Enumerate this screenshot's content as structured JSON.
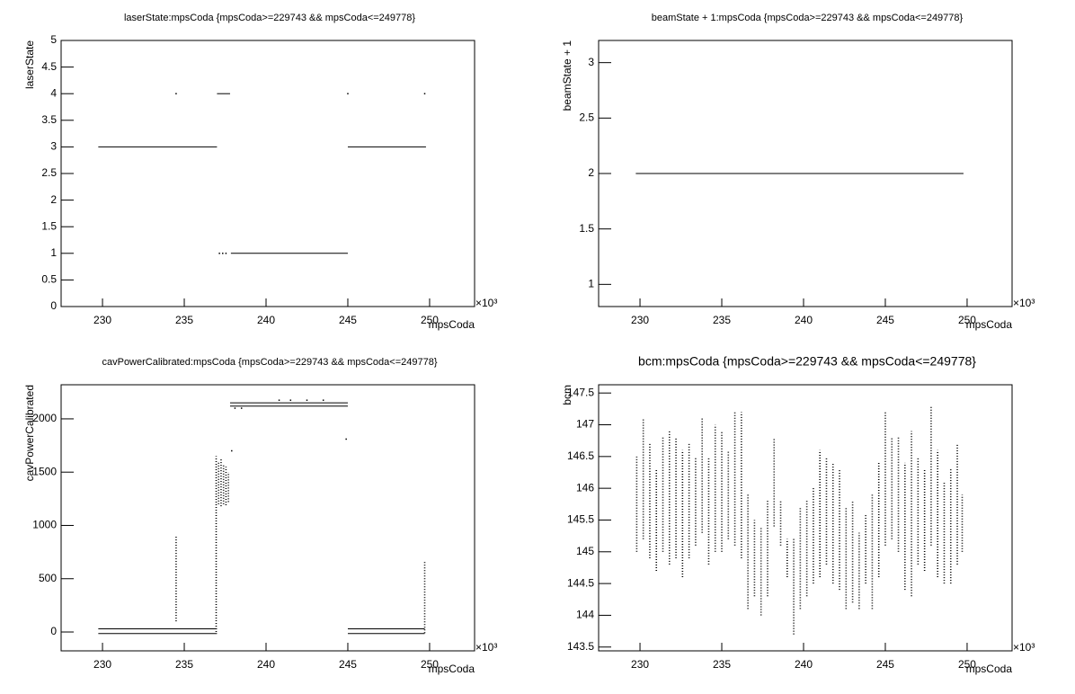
{
  "chart_data": [
    {
      "type": "scatter",
      "title": "laserState:mpsCoda {mpsCoda>=229743 && mpsCoda<=249778}",
      "x_label": "mpsCoda",
      "y_label": "laserState",
      "x_multiplier": "×10³",
      "xlim": [
        227.47,
        252.75
      ],
      "xticks": [
        230,
        235,
        240,
        245,
        250
      ],
      "ylim": [
        0,
        5
      ],
      "yticks": [
        0,
        0.5,
        1,
        1.5,
        2,
        2.5,
        3,
        3.5,
        4,
        4.5,
        5
      ],
      "color": "#000000",
      "series": [
        {
          "style": "line",
          "x": [
            229.743,
            237.0
          ],
          "values": [
            3,
            3
          ]
        },
        {
          "style": "line",
          "x": [
            237.0,
            237.8
          ],
          "values": [
            4,
            4
          ]
        },
        {
          "style": "line",
          "x": [
            237.85,
            245.0
          ],
          "values": [
            1,
            1
          ]
        },
        {
          "style": "line",
          "x": [
            245.0,
            249.778
          ],
          "values": [
            3,
            3
          ]
        },
        {
          "style": "dots",
          "x": [
            234.5,
            245.0,
            249.7,
            237.15,
            237.35,
            237.55
          ],
          "values": [
            4,
            4,
            4,
            1,
            1,
            1
          ]
        }
      ]
    },
    {
      "type": "scatter",
      "title": "beamState + 1:mpsCoda {mpsCoda>=229743 && mpsCoda<=249778}",
      "x_label": "mpsCoda",
      "y_label": "beamState + 1",
      "x_multiplier": "×10³",
      "xlim": [
        227.47,
        252.75
      ],
      "xticks": [
        230,
        235,
        240,
        245,
        250
      ],
      "ylim": [
        0.8,
        3.2
      ],
      "yticks": [
        1,
        1.5,
        2,
        2.5,
        3
      ],
      "color": "#000000",
      "series": [
        {
          "style": "line",
          "x": [
            229.743,
            249.778
          ],
          "values": [
            2,
            2
          ]
        }
      ]
    },
    {
      "type": "scatter",
      "title": "cavPowerCalibrated:mpsCoda {mpsCoda>=229743 && mpsCoda<=249778}",
      "x_label": "mpsCoda",
      "y_label": "cavPowerCalibrated",
      "x_multiplier": "×10³",
      "xlim": [
        227.47,
        252.75
      ],
      "xticks": [
        230,
        235,
        240,
        245,
        250
      ],
      "ylim": [
        -177,
        2320
      ],
      "yticks": [
        0,
        500,
        1000,
        1500,
        2000
      ],
      "color": "#000000",
      "series": [
        {
          "style": "line",
          "x": [
            229.743,
            237.0
          ],
          "values": [
            30,
            30
          ]
        },
        {
          "style": "line",
          "x": [
            229.743,
            237.0
          ],
          "values": [
            -15,
            -15
          ]
        },
        {
          "style": "line",
          "x": [
            237.8,
            245.0
          ],
          "values": [
            2150,
            2150
          ]
        },
        {
          "style": "line",
          "x": [
            237.8,
            245.0
          ],
          "values": [
            2120,
            2120
          ]
        },
        {
          "style": "line",
          "x": [
            245.0,
            249.7
          ],
          "values": [
            30,
            30
          ]
        },
        {
          "style": "line",
          "x": [
            245.0,
            249.7
          ],
          "values": [
            -15,
            -15
          ]
        },
        {
          "style": "range",
          "x": [
            234.5,
            236.95,
            237.1,
            237.25,
            237.4,
            237.55,
            237.7,
            249.7
          ],
          "low": [
            100,
            0,
            1200,
            1180,
            1200,
            1190,
            1220,
            -10
          ],
          "high": [
            900,
            1650,
            1600,
            1630,
            1580,
            1550,
            1500,
            660
          ]
        },
        {
          "style": "dots",
          "x": [
            244.9,
            238.1,
            238.5,
            240.8,
            241.5,
            242.5,
            243.5,
            237.9
          ],
          "values": [
            1810,
            2100,
            2100,
            2175,
            2175,
            2175,
            2175,
            1700
          ]
        }
      ]
    },
    {
      "type": "scatter",
      "title": "bcm:mpsCoda {mpsCoda>=229743 && mpsCoda<=249778}",
      "x_label": "mpsCoda",
      "y_label": "bcm",
      "x_multiplier": "×10³",
      "xlim": [
        227.47,
        252.75
      ],
      "xticks": [
        230,
        235,
        240,
        245,
        250
      ],
      "ylim": [
        143.44,
        147.63
      ],
      "yticks": [
        143.5,
        144,
        144.5,
        145,
        145.5,
        146,
        146.5,
        147,
        147.5
      ],
      "color": "#000000",
      "series": [
        {
          "style": "range",
          "x": [
            229.8,
            230.2,
            230.6,
            231.0,
            231.4,
            231.8,
            232.2,
            232.6,
            233.0,
            233.4,
            233.8,
            234.2,
            234.6,
            235.0,
            235.4,
            235.8,
            236.2,
            236.6,
            237.0,
            237.4,
            237.8,
            238.2,
            238.6,
            239.0,
            239.4,
            239.8,
            240.2,
            240.6,
            241.0,
            241.4,
            241.8,
            242.2,
            242.6,
            243.0,
            243.4,
            243.8,
            244.2,
            244.6,
            245.0,
            245.4,
            245.8,
            246.2,
            246.6,
            247.0,
            247.4,
            247.8,
            248.2,
            248.6,
            249.0,
            249.4,
            249.7
          ],
          "low": [
            145.0,
            145.2,
            144.9,
            144.7,
            145.0,
            144.8,
            144.9,
            144.6,
            144.9,
            145.1,
            145.3,
            144.8,
            145.0,
            145.0,
            145.2,
            145.1,
            144.9,
            144.1,
            144.3,
            144.0,
            144.3,
            145.4,
            145.1,
            144.6,
            143.7,
            144.1,
            144.3,
            144.5,
            144.6,
            144.8,
            144.5,
            144.4,
            144.1,
            144.2,
            144.1,
            144.5,
            144.1,
            144.6,
            145.1,
            145.2,
            145.0,
            144.4,
            144.3,
            144.8,
            144.7,
            145.1,
            144.6,
            144.5,
            144.5,
            144.8,
            145.0
          ],
          "high": [
            146.5,
            147.1,
            146.7,
            146.3,
            146.8,
            146.9,
            146.8,
            146.6,
            146.7,
            146.5,
            147.1,
            146.5,
            147.0,
            146.9,
            146.6,
            147.2,
            147.2,
            145.9,
            145.5,
            145.4,
            145.8,
            146.8,
            145.8,
            145.2,
            145.2,
            145.7,
            145.8,
            146.0,
            146.6,
            146.5,
            146.4,
            146.3,
            145.7,
            145.8,
            145.3,
            145.6,
            145.9,
            146.4,
            147.2,
            146.8,
            146.8,
            146.4,
            146.9,
            146.5,
            146.3,
            147.3,
            146.6,
            146.1,
            146.3,
            146.7,
            145.9
          ]
        }
      ]
    }
  ]
}
